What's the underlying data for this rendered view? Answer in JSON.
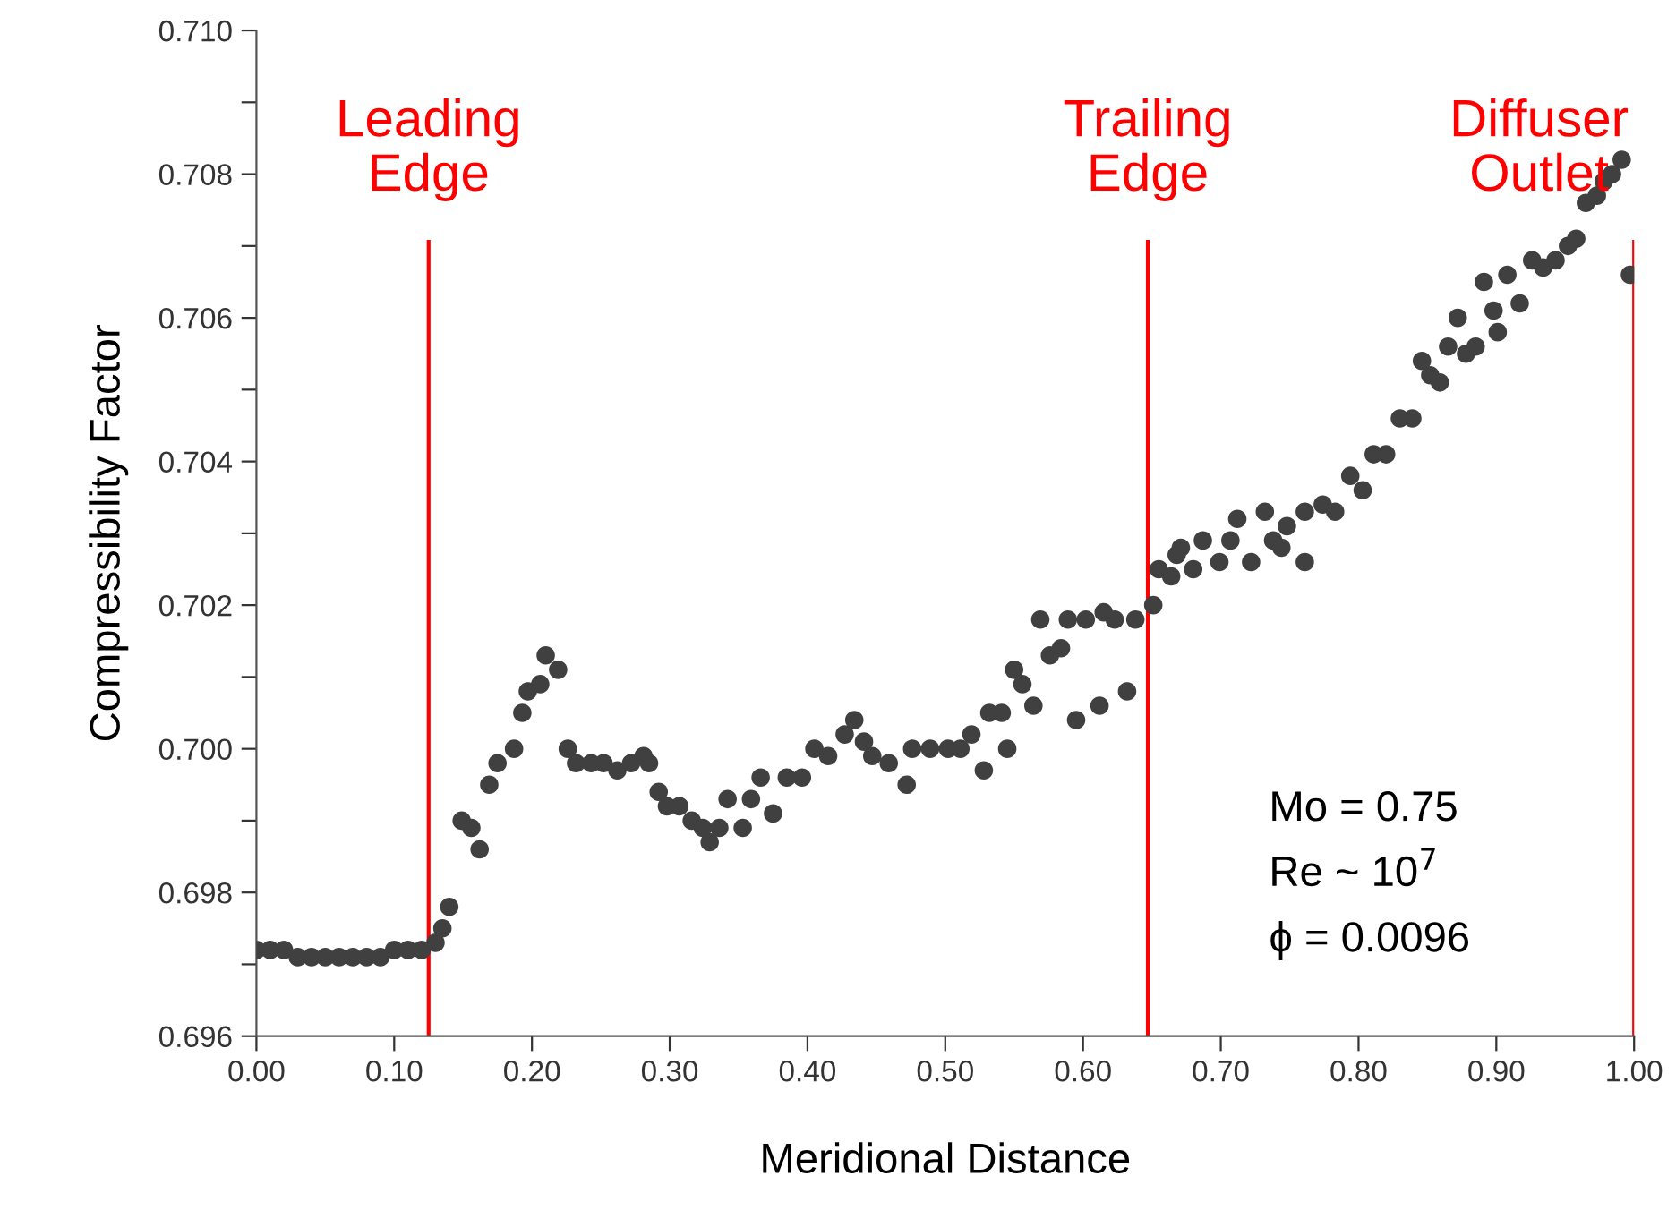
{
  "chart_data": {
    "type": "scatter",
    "xlabel": "Meridional Distance",
    "ylabel": "Compressibility Factor",
    "xlim": [
      0,
      1.0
    ],
    "ylim": [
      0.696,
      0.71
    ],
    "xticks": [
      {
        "value": 0,
        "label": "0.00"
      },
      {
        "value": 0.1,
        "label": "0.10"
      },
      {
        "value": 0.2,
        "label": "0.20"
      },
      {
        "value": 0.3,
        "label": "0.30"
      },
      {
        "value": 0.4,
        "label": "0.40"
      },
      {
        "value": 0.5,
        "label": "0.50"
      },
      {
        "value": 0.6,
        "label": "0.60"
      },
      {
        "value": 0.7,
        "label": "0.70"
      },
      {
        "value": 0.8,
        "label": "0.80"
      },
      {
        "value": 0.9,
        "label": "0.90"
      },
      {
        "value": 1.0,
        "label": "1.00"
      }
    ],
    "yticks": [
      0.696,
      {
        "value": 0.697,
        "label": null
      },
      0.698,
      {
        "value": 0.699,
        "label": null
      },
      {
        "value": 0.7,
        "label": "0.700"
      },
      {
        "value": 0.701,
        "label": null
      },
      0.702,
      {
        "value": 0.703,
        "label": null
      },
      0.704,
      {
        "value": 0.705,
        "label": null
      },
      0.706,
      {
        "value": 0.707,
        "label": null
      },
      0.708,
      {
        "value": 0.709,
        "label": null
      },
      {
        "value": 0.71,
        "label": "0.710"
      }
    ],
    "grid": false,
    "marker": "circle",
    "series": [
      {
        "color": "#404040",
        "x": [
          0.0,
          0.01,
          0.02,
          0.03,
          0.04,
          0.05,
          0.06,
          0.07,
          0.08,
          0.09,
          0.1,
          0.11,
          0.12,
          0.13,
          0.135,
          0.14,
          0.149,
          0.156,
          0.162,
          0.169,
          0.175,
          0.187,
          0.193,
          0.197,
          0.206,
          0.21,
          0.219,
          0.226,
          0.232,
          0.243,
          0.252,
          0.262,
          0.272,
          0.281,
          0.285,
          0.292,
          0.298,
          0.307,
          0.316,
          0.324,
          0.329,
          0.336,
          0.342,
          0.353,
          0.359,
          0.366,
          0.375,
          0.385,
          0.396,
          0.405,
          0.415,
          0.427,
          0.434,
          0.441,
          0.447,
          0.459,
          0.472,
          0.476,
          0.489,
          0.502,
          0.511,
          0.519,
          0.528,
          0.532,
          0.541,
          0.545,
          0.55,
          0.556,
          0.564,
          0.569,
          0.576,
          0.584,
          0.589,
          0.595,
          0.602,
          0.612,
          0.615,
          0.623,
          0.632,
          0.638,
          0.651,
          0.655,
          0.664,
          0.668,
          0.671,
          0.68,
          0.687,
          0.699,
          0.707,
          0.712,
          0.722,
          0.732,
          0.738,
          0.744,
          0.748,
          0.761,
          0.761,
          0.774,
          0.783,
          0.794,
          0.803,
          0.811,
          0.82,
          0.83,
          0.839,
          0.846,
          0.852,
          0.859,
          0.865,
          0.872,
          0.878,
          0.885,
          0.891,
          0.898,
          0.901,
          0.908,
          0.917,
          0.926,
          0.934,
          0.943,
          0.952,
          0.958,
          0.965,
          0.973,
          0.978,
          0.984,
          0.991,
          0.997,
          1.0
        ],
        "values": [
          0.6972,
          0.6972,
          0.6972,
          0.6971,
          0.6971,
          0.6971,
          0.6971,
          0.6971,
          0.6971,
          0.6971,
          0.6972,
          0.6972,
          0.6972,
          0.6973,
          0.6975,
          0.6978,
          0.699,
          0.6989,
          0.6986,
          0.6995,
          0.6998,
          0.7,
          0.7005,
          0.7008,
          0.7009,
          0.7013,
          0.7011,
          0.7,
          0.6998,
          0.6998,
          0.6998,
          0.6997,
          0.6998,
          0.6999,
          0.6998,
          0.6994,
          0.6992,
          0.6992,
          0.699,
          0.6989,
          0.6987,
          0.6989,
          0.6993,
          0.6989,
          0.6993,
          0.6996,
          0.6991,
          0.6996,
          0.6996,
          0.7,
          0.6999,
          0.7002,
          0.7004,
          0.7001,
          0.6999,
          0.6998,
          0.6995,
          0.7,
          0.7,
          0.7,
          0.7,
          0.7002,
          0.6997,
          0.7005,
          0.7005,
          0.7,
          0.7011,
          0.7009,
          0.7006,
          0.7018,
          0.7013,
          0.7014,
          0.7018,
          0.7004,
          0.7018,
          0.7006,
          0.7019,
          0.7018,
          0.7008,
          0.7018,
          0.702,
          0.7025,
          0.7024,
          0.7027,
          0.7028,
          0.7025,
          0.7029,
          0.7026,
          0.7029,
          0.7032,
          0.7026,
          0.7033,
          0.7029,
          0.7028,
          0.7031,
          0.7026,
          0.7033,
          0.7034,
          0.7033,
          0.7038,
          0.7036,
          0.7041,
          0.7041,
          0.7046,
          0.7046,
          0.7054,
          0.7052,
          0.7051,
          0.7056,
          0.706,
          0.7055,
          0.7056,
          0.7065,
          0.7061,
          0.7058,
          0.7066,
          0.7062,
          0.7068,
          0.7067,
          0.7068,
          0.707,
          0.7071,
          0.7076,
          0.7077,
          0.7079,
          0.708,
          0.7082,
          0.7066,
          0.7066
        ]
      }
    ],
    "ref_lines": [
      {
        "axis": "x",
        "value": 0.125,
        "label": "Leading\nEdge",
        "color": "#ff0000"
      },
      {
        "axis": "x",
        "value": 0.647,
        "label": "Trailing\nEdge",
        "color": "#ff0000"
      },
      {
        "axis": "x",
        "value": 1.0,
        "label": "Diffuser\nOutlet",
        "color": "#ff0000"
      }
    ],
    "annotations": [
      "Mo = 0.75",
      "Re ~ 10$^{7}$",
      "ϕ = 0.0096"
    ]
  }
}
